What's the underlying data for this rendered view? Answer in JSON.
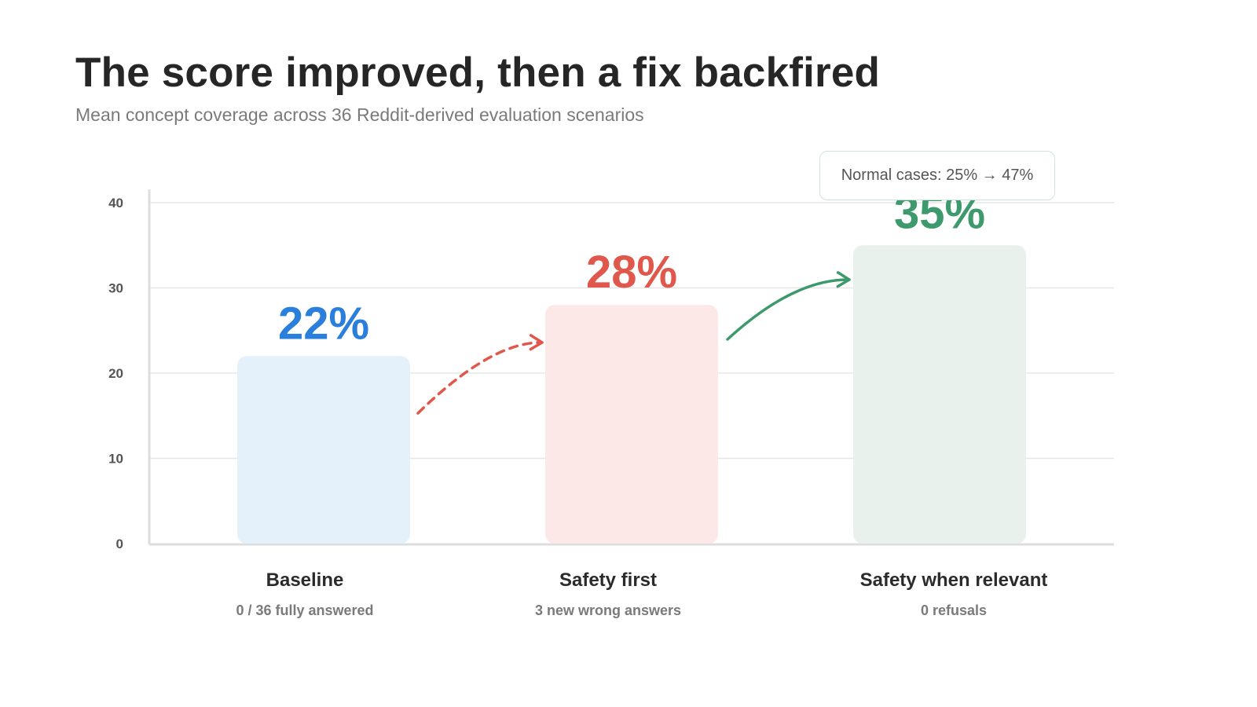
{
  "title": "The score improved, then a fix backfired",
  "subtitle": "Mean concept coverage across 36 Reddit-derived evaluation scenarios",
  "callout": "Normal cases: 25% → 47%",
  "colors": {
    "baseline": "#2a7fdc",
    "safety_first": "#e0574b",
    "safety_relevant": "#3e9a6c",
    "baseline_bar": "#e5f1fa",
    "safety_first_bar": "#fce8e7",
    "safety_relevant_bar": "#e8f1ec",
    "grid": "#e6e6e6",
    "axis": "#dddddd",
    "tick": "#555555",
    "category": "#2b2b2b",
    "note": "#7a7a7a"
  },
  "chart_data": {
    "type": "bar",
    "title": "The score improved, then a fix backfired",
    "subtitle": "Mean concept coverage across 36 Reddit-derived evaluation scenarios",
    "xlabel": "",
    "ylabel": "",
    "ylim": [
      0,
      40
    ],
    "yticks": [
      "0",
      "10",
      "20",
      "30",
      "40"
    ],
    "grid": true,
    "categories": [
      "Baseline",
      "Safety first",
      "Safety when relevant"
    ],
    "values": [
      22,
      28,
      35
    ],
    "value_labels": [
      "22%",
      "28%",
      "35%"
    ],
    "notes": [
      "0 / 36 fully answered",
      "3 new wrong answers",
      "0 refusals"
    ],
    "annotations": [
      {
        "from": "Baseline",
        "to": "Safety first",
        "style": "dashed"
      },
      {
        "from": "Safety first",
        "to": "Safety when relevant",
        "style": "solid"
      }
    ]
  }
}
